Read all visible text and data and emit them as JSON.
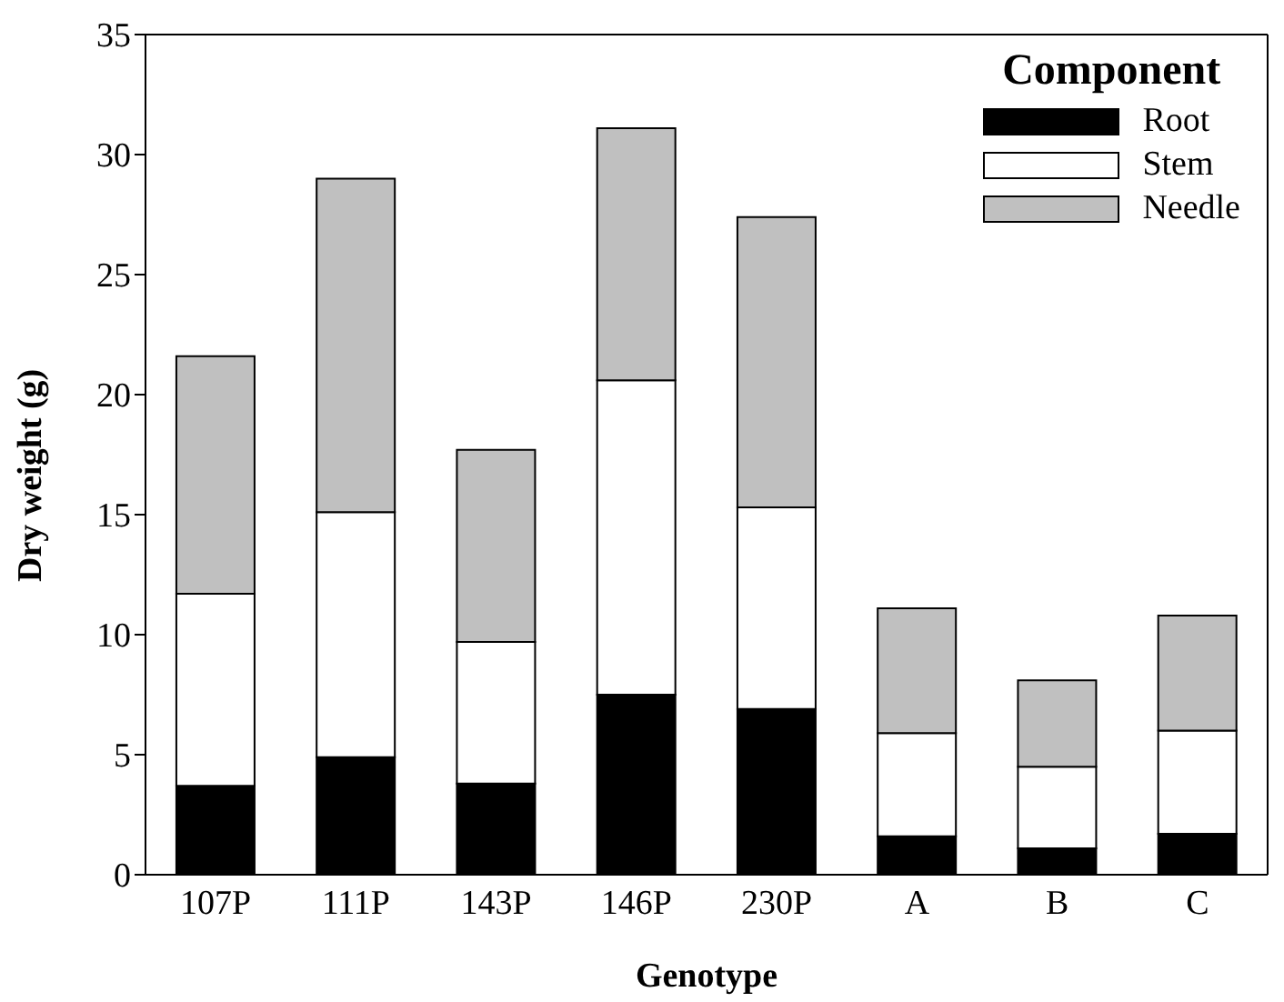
{
  "chart_data": {
    "type": "bar",
    "stacked": true,
    "xlabel": "Genotype",
    "ylabel": "Dry weight (g)",
    "legend_title": "Component",
    "legend": "top right",
    "categories": [
      "107P",
      "111P",
      "143P",
      "146P",
      "230P",
      "A",
      "B",
      "C"
    ],
    "series": [
      {
        "name": "Root",
        "color": "#000000",
        "values": [
          3.7,
          4.9,
          3.8,
          7.5,
          6.9,
          1.6,
          1.1,
          1.7
        ]
      },
      {
        "name": "Stem",
        "color": "#ffffff",
        "values": [
          8.0,
          10.2,
          5.9,
          13.1,
          8.4,
          4.3,
          3.4,
          4.3
        ]
      },
      {
        "name": "Needle",
        "color": "#c0c0c0",
        "values": [
          9.9,
          13.9,
          8.0,
          10.5,
          12.1,
          5.2,
          3.6,
          4.8
        ]
      }
    ],
    "ylim": [
      0,
      35
    ],
    "yticks": [
      0,
      5,
      10,
      15,
      20,
      25,
      30,
      35
    ]
  }
}
